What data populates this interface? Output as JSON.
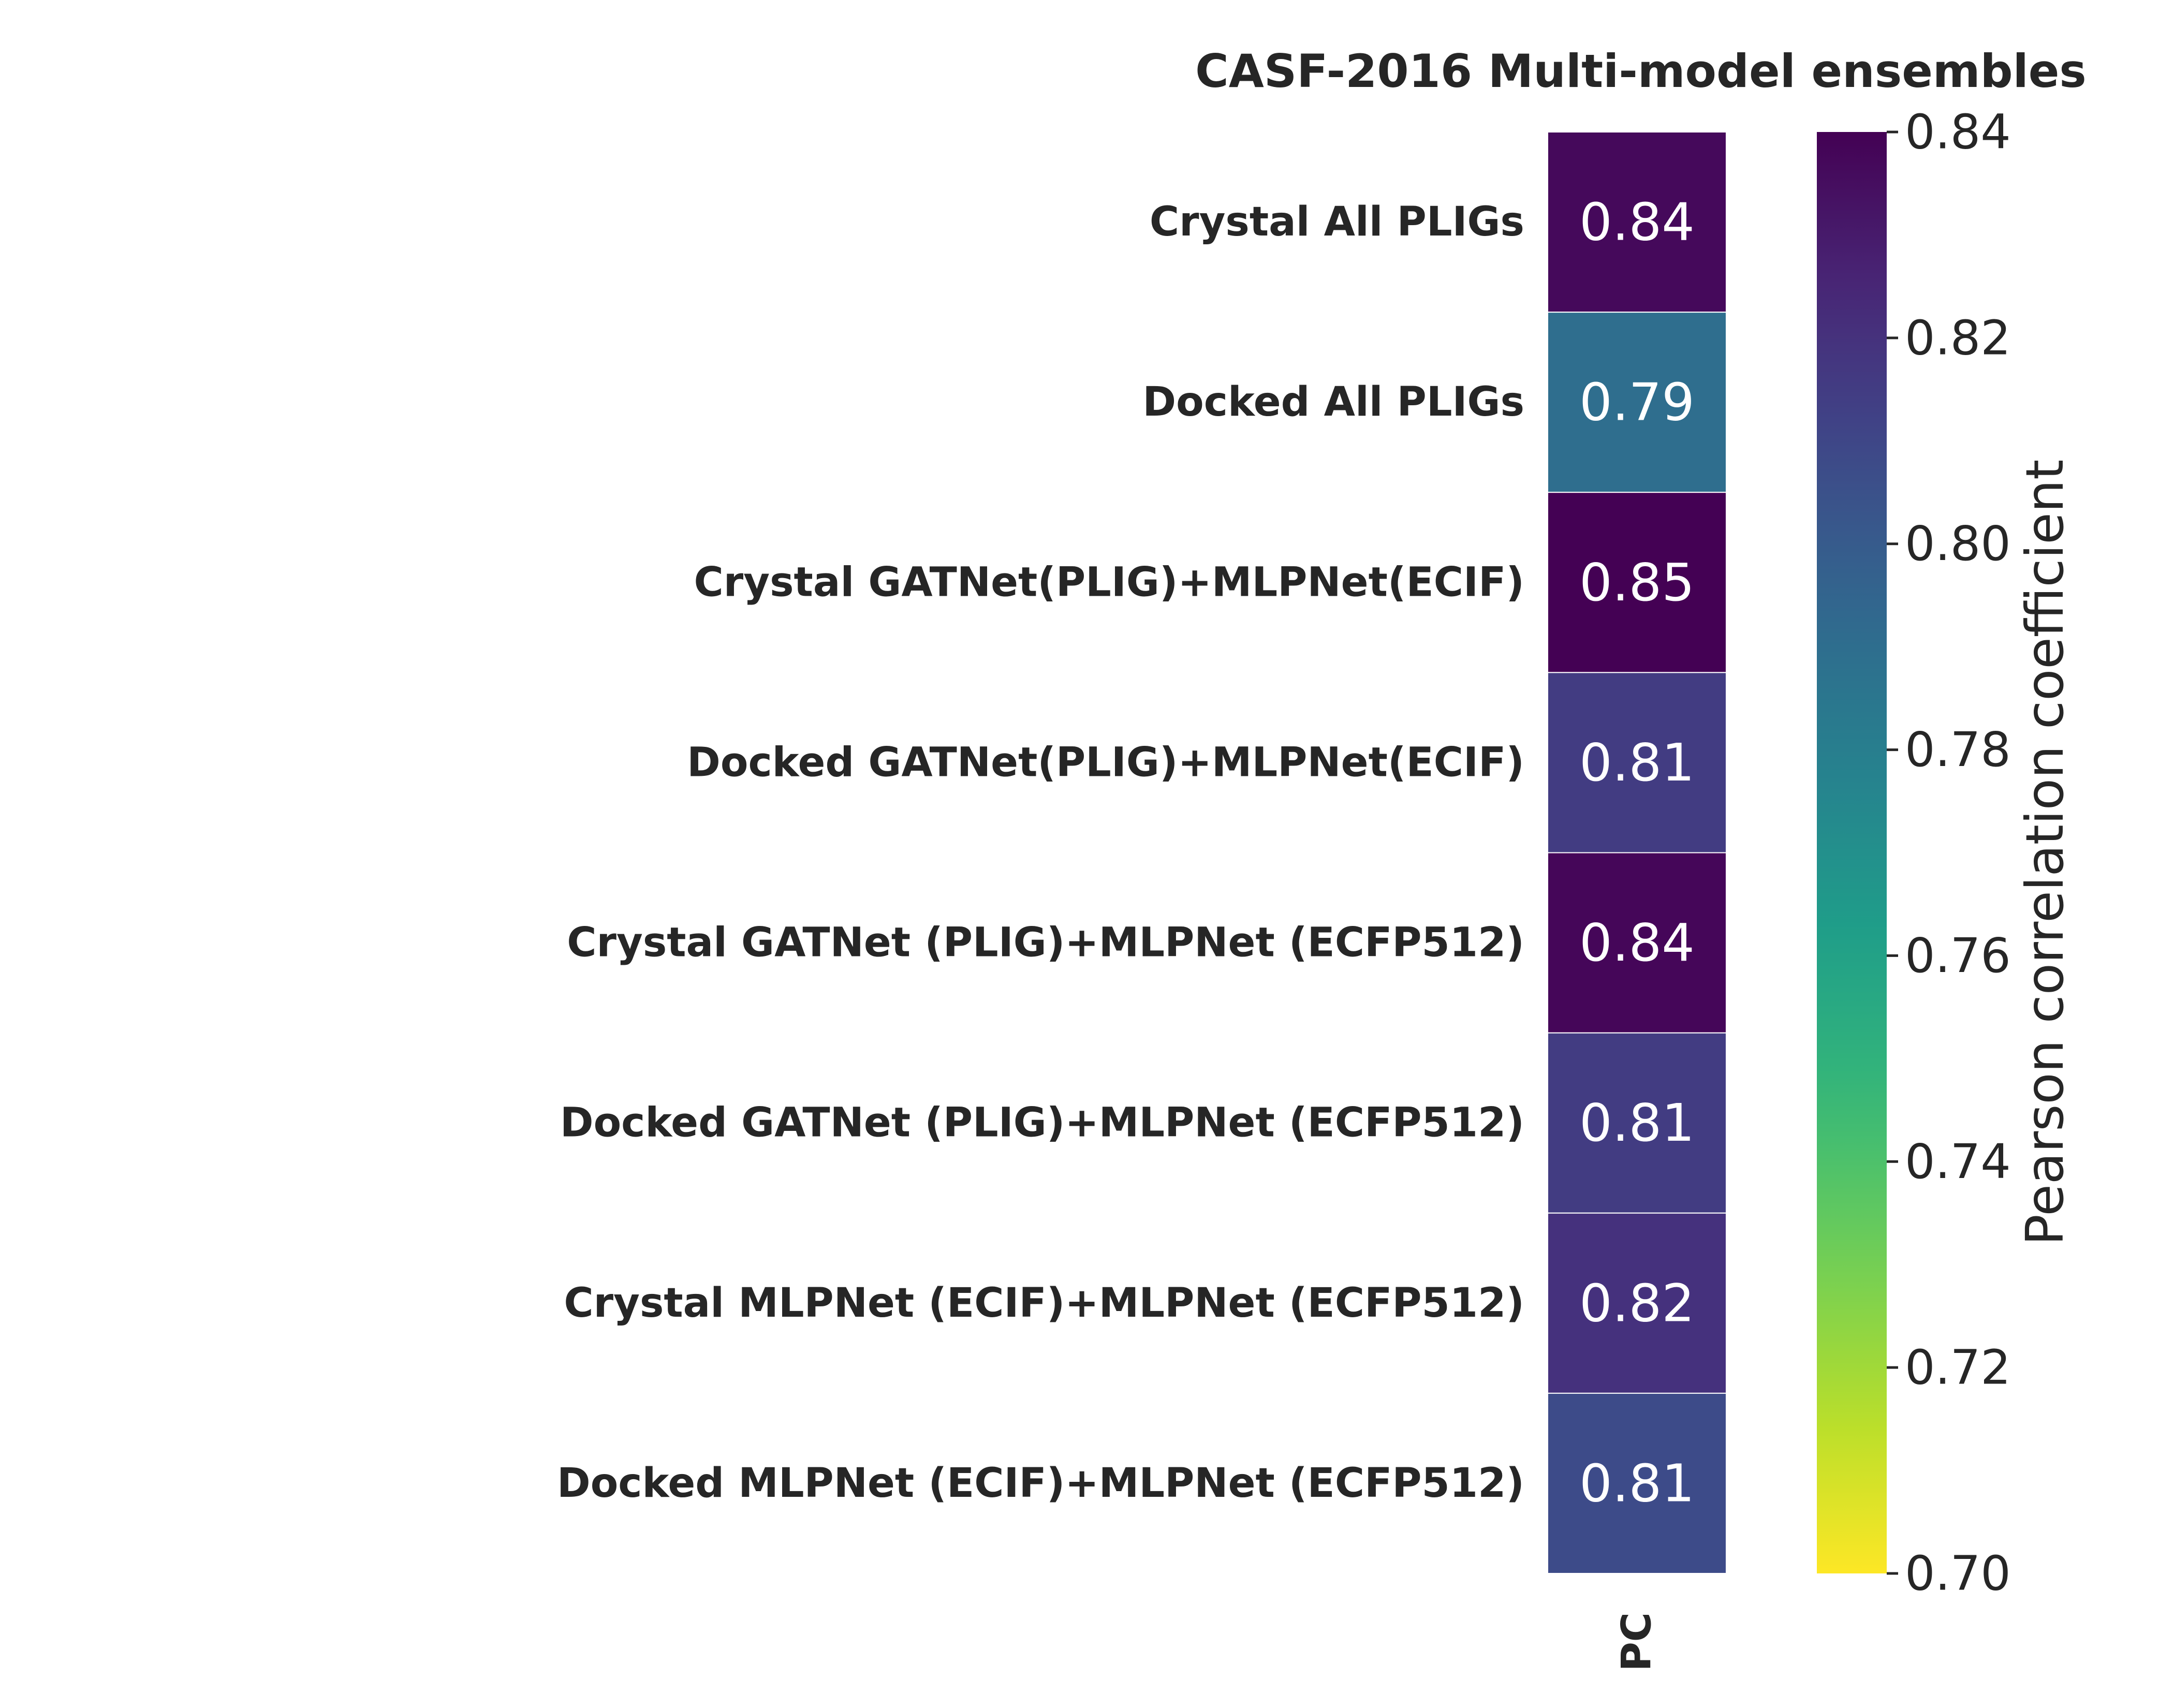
{
  "chart_data": {
    "type": "heatmap",
    "title": "CASF-2016 Multi-model ensembles",
    "rows": [
      "Crystal All PLIGs",
      "Docked All PLIGs",
      "Crystal GATNet(PLIG)+MLPNet(ECIF)",
      "Docked GATNet(PLIG)+MLPNet(ECIF)",
      "Crystal GATNet (PLIG)+MLPNet (ECFP512)",
      "Docked GATNet (PLIG)+MLPNet (ECFP512)",
      "Crystal MLPNet (ECIF)+MLPNet (ECFP512)",
      "Docked MLPNet (ECIF)+MLPNet (ECFP512)"
    ],
    "columns": [
      "PC"
    ],
    "values": [
      0.837,
      0.79,
      0.845,
      0.815,
      0.838,
      0.815,
      0.82,
      0.808
    ],
    "value_labels": [
      "0.84",
      "0.79",
      "0.85",
      "0.81",
      "0.84",
      "0.81",
      "0.82",
      "0.81"
    ],
    "colorbar": {
      "label": "Pearson correlation coefficient",
      "vmin": 0.7,
      "vmax": 0.84,
      "ticks": [
        0.7,
        0.72,
        0.74,
        0.76,
        0.78,
        0.8,
        0.82,
        0.84
      ],
      "tick_labels": [
        "0.70",
        "0.72",
        "0.74",
        "0.76",
        "0.78",
        "0.80",
        "0.82",
        "0.84"
      ],
      "colormap": "viridis_r"
    },
    "cell_text_color": "#ffffff",
    "grid": false
  }
}
